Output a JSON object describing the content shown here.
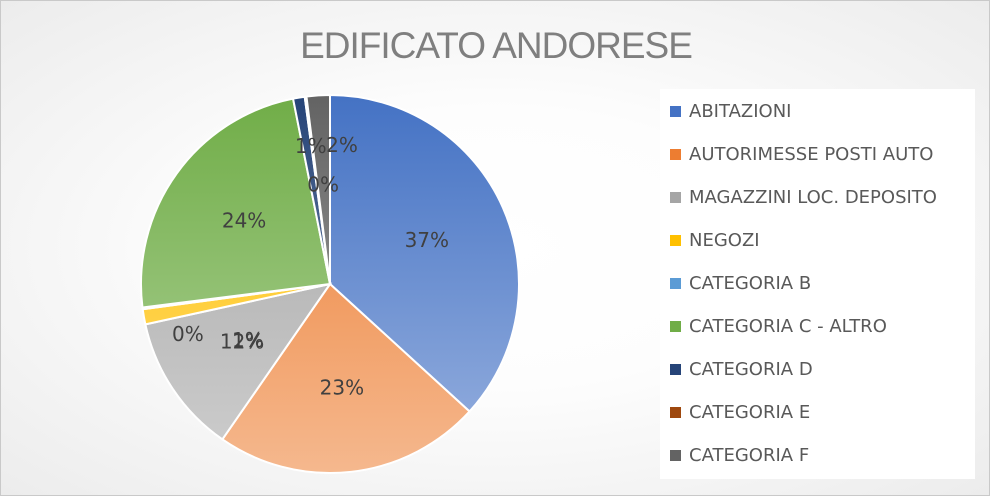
{
  "chart_data": {
    "type": "pie",
    "title": "EDIFICATO ANDORESE",
    "categories": [
      "ABITAZIONI",
      "AUTORIMESSE POSTI AUTO",
      "MAGAZZINI LOC. DEPOSITO",
      "NEGOZI",
      "CATEGORIA B",
      "CATEGORIA C - ALTRO",
      "CATEGORIA D",
      "CATEGORIA E",
      "CATEGORIA F"
    ],
    "values": [
      37,
      23,
      12,
      1,
      0,
      24,
      1,
      0,
      2
    ],
    "data_labels": [
      "37%",
      "23%",
      "12%",
      "1%",
      "0%",
      "24%",
      "1%",
      "0%",
      "2%"
    ],
    "colors": [
      "#4472C4",
      "#ED7D31",
      "#A5A5A5",
      "#FFC000",
      "#5B9BD5",
      "#70AD47",
      "#264478",
      "#9E480E",
      "#636363"
    ],
    "legend_position": "right"
  }
}
